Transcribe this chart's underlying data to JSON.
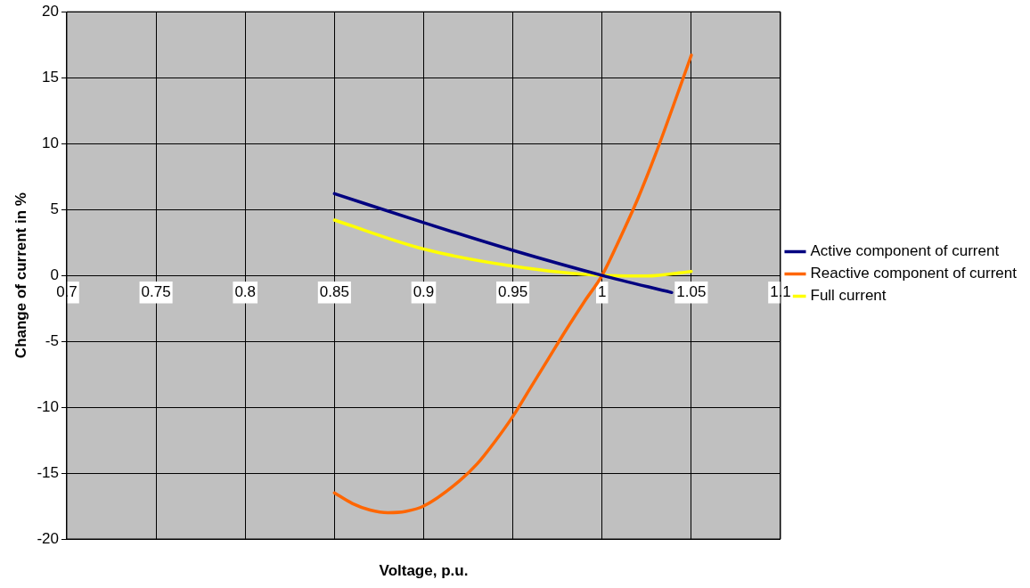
{
  "chart_data": {
    "type": "line",
    "xlabel": "Voltage, p.u.",
    "ylabel": "Change of current in %",
    "xlim": [
      0.7,
      1.1
    ],
    "xticks": [
      0.7,
      0.75,
      0.8,
      0.85,
      0.9,
      0.95,
      1,
      1.05,
      1.1
    ],
    "ylim": [
      -20,
      20
    ],
    "yticks": [
      -20,
      -15,
      -10,
      -5,
      0,
      5,
      10,
      15,
      20
    ],
    "grid": true,
    "legend": "right",
    "marker": "none",
    "line_style": "solid",
    "series": [
      {
        "name": "Active component of current",
        "color": "#000080",
        "x": [
          0.85,
          0.9,
          0.95,
          1.0,
          1.039
        ],
        "values": [
          6.2,
          4.0,
          1.9,
          0,
          -1.3
        ]
      },
      {
        "name": "Reactive component of current",
        "color": "#ff6600",
        "x": [
          0.85,
          0.86,
          0.87,
          0.88,
          0.89,
          0.9,
          0.92,
          0.93,
          0.94,
          0.95,
          0.96,
          0.97,
          0.98,
          0.99,
          1.0,
          1.01,
          1.02,
          1.03,
          1.04,
          1.05
        ],
        "values": [
          -16.5,
          -17.3,
          -17.8,
          -18.0,
          -17.9,
          -17.5,
          -15.6,
          -14.3,
          -12.6,
          -10.7,
          -8.5,
          -6.3,
          -4.1,
          -2.0,
          0,
          2.8,
          5.8,
          9.2,
          12.9,
          16.7
        ]
      },
      {
        "name": "Full current",
        "color": "#ffff00",
        "x": [
          0.85,
          0.9,
          0.95,
          1.0,
          1.025,
          1.05
        ],
        "values": [
          4.2,
          2.0,
          0.7,
          0,
          -0.05,
          0.3
        ]
      }
    ]
  }
}
